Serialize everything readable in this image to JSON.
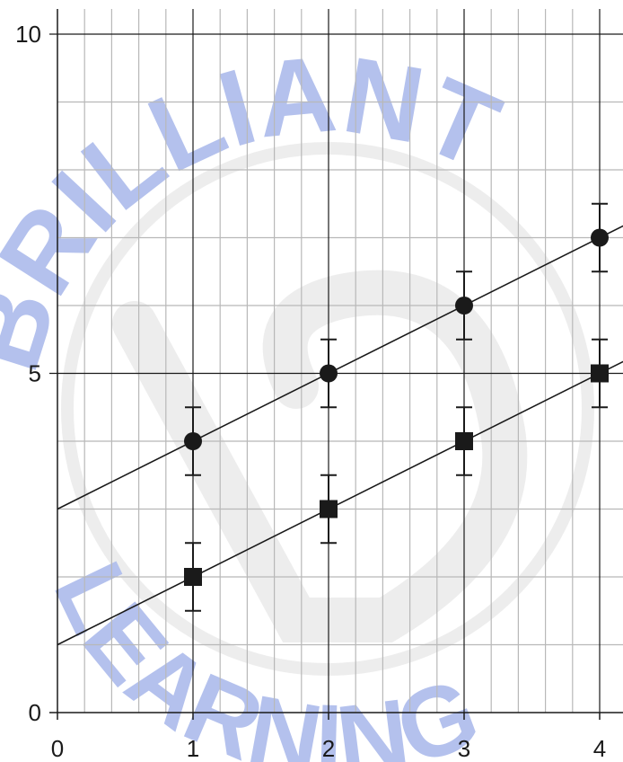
{
  "chart_data": {
    "type": "scatter",
    "title": "",
    "xlabel": "",
    "ylabel": "",
    "xlim": [
      0,
      4.2
    ],
    "ylim": [
      0,
      10.4
    ],
    "x_ticks": [
      0,
      1,
      2,
      3,
      4
    ],
    "y_ticks": [
      0,
      5,
      10
    ],
    "x_tick_labels": [
      "0",
      "1",
      "2",
      "3",
      "4"
    ],
    "y_tick_labels": [
      "0",
      "5",
      "10"
    ],
    "grid": true,
    "minor_x_step": 0.2,
    "minor_y_step": 1,
    "series": [
      {
        "marker": "circle",
        "x": [
          1,
          2,
          3,
          4
        ],
        "y": [
          4,
          5,
          6,
          7
        ],
        "error": 0.5,
        "fit_line": {
          "slope": 1,
          "intercept": 3
        }
      },
      {
        "marker": "square",
        "x": [
          1,
          2,
          3,
          4
        ],
        "y": [
          2,
          3,
          4,
          5
        ],
        "error": 0.5,
        "fit_line": {
          "slope": 1,
          "intercept": 1
        }
      }
    ]
  },
  "watermark": {
    "text_top": "BRILLIANT",
    "text_bottom": "LEARNING",
    "text_color": "#5a78d8",
    "ring_color": "#d9d9d9"
  },
  "colors": {
    "major_grid": "#1a1a1a",
    "minor_grid": "#b8b8b8",
    "marker": "#1a1a1a",
    "line": "#1a1a1a"
  }
}
